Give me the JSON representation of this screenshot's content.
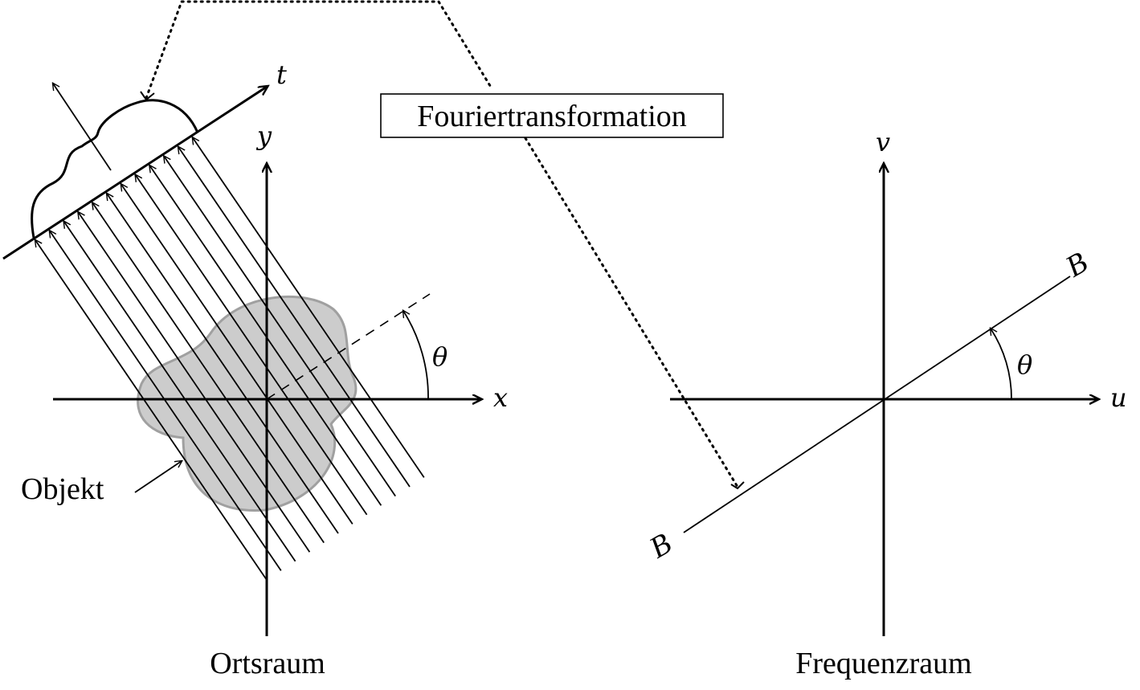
{
  "left_panel": {
    "caption": "Ortsraum",
    "x_axis_label": "x",
    "y_axis_label": "y",
    "t_axis_label": "t",
    "angle_label": "θ",
    "object_label": "Objekt"
  },
  "right_panel": {
    "caption": "Frequenzraum",
    "u_axis_label": "u",
    "v_axis_label": "v",
    "angle_label": "θ",
    "line_end_label_top": "B",
    "line_end_label_bottom": "B"
  },
  "transform_box": {
    "label": "Fouriertransformation"
  },
  "colors": {
    "object_fill": "#cccccc",
    "object_stroke": "#a0a0a0",
    "ink": "#000000"
  }
}
